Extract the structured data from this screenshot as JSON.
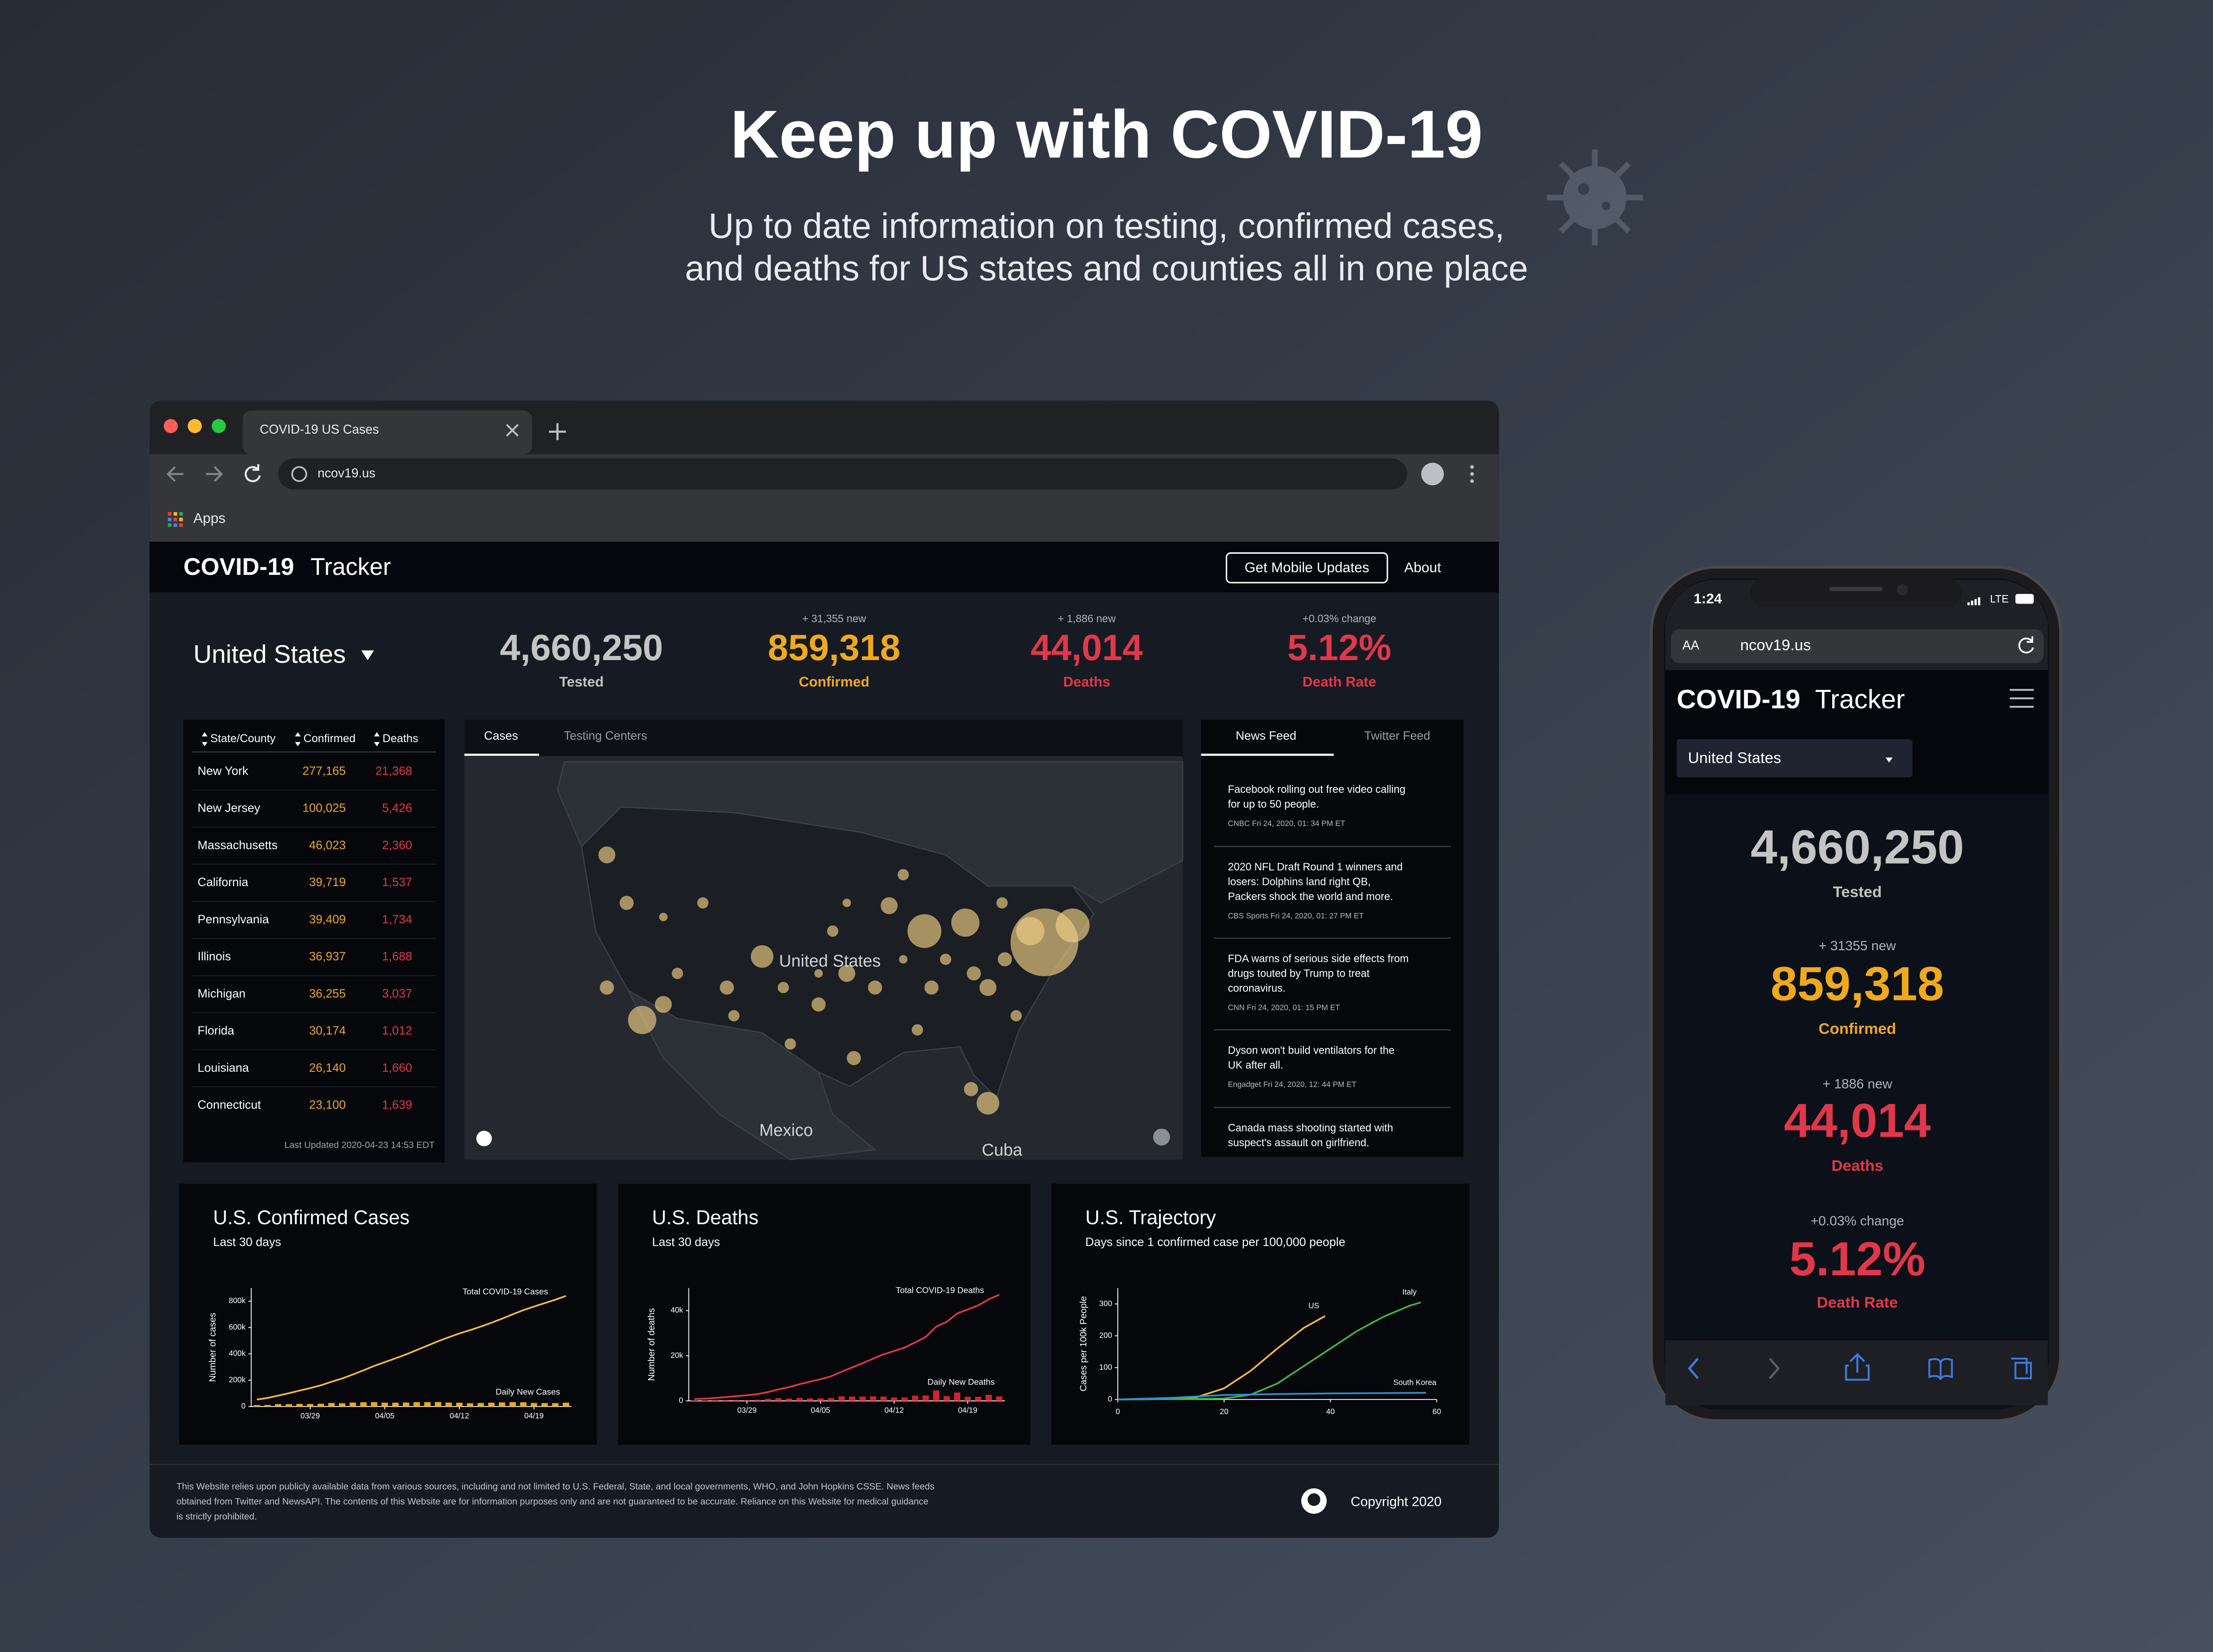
{
  "hero": {
    "title": "Keep up with COVID-19",
    "subtitle_lines": [
      "Up to date information on testing, confirmed cases,",
      "and deaths for US states and counties all in one place"
    ]
  },
  "browser": {
    "tab_title": "COVID-19 US Cases",
    "url": "ncov19.us",
    "bookmark": "Apps"
  },
  "site": {
    "brand_bold": "COVID-19",
    "brand_rest": "Tracker",
    "buttons": [
      "Get Mobile Updates",
      "About"
    ]
  },
  "summary": {
    "location": "United States",
    "stats": [
      {
        "value": "4,660,250",
        "label": "Tested"
      },
      {
        "change": "+ 31,355 new",
        "value": "859,318",
        "label": "Confirmed"
      },
      {
        "change": "+ 1,886 new",
        "value": "44,014",
        "label": "Deaths"
      },
      {
        "change": "+0.03% change",
        "value": "5.12%",
        "label": "Death Rate"
      }
    ]
  },
  "table": {
    "headers": [
      "State/County",
      "Confirmed",
      "Deaths"
    ],
    "rows": [
      [
        "New York",
        "277,165",
        "21,368"
      ],
      [
        "New Jersey",
        "100,025",
        "5,426"
      ],
      [
        "Massachusetts",
        "46,023",
        "2,360"
      ],
      [
        "California",
        "39,719",
        "1,537"
      ],
      [
        "Pennsylvania",
        "39,409",
        "1,734"
      ],
      [
        "Illinois",
        "36,937",
        "1,688"
      ],
      [
        "Michigan",
        "36,255",
        "3,037"
      ],
      [
        "Florida",
        "30,174",
        "1,012"
      ],
      [
        "Louisiana",
        "26,140",
        "1,660"
      ],
      [
        "Connecticut",
        "23,100",
        "1,639"
      ]
    ],
    "footer": "Last Updated 2020-04-23 14:53 EDT"
  },
  "map": {
    "tabs": [
      "Cases",
      "Testing Centers"
    ],
    "labels": [
      "United States",
      "Mexico",
      "Cuba"
    ]
  },
  "news": {
    "tabs": [
      "News Feed",
      "Twitter Feed"
    ],
    "items": [
      {
        "headline": [
          "Facebook rolling out free video calling",
          "for up to 50 people."
        ],
        "meta": "CNBC Fri 24, 2020, 01: 34 PM ET"
      },
      {
        "headline": [
          "2020 NFL Draft Round 1 winners and",
          "losers: Dolphins land right QB,",
          "Packers shock the world and more."
        ],
        "meta": "CBS Sports Fri 24, 2020, 01: 27 PM ET"
      },
      {
        "headline": [
          "FDA warns of serious side effects from",
          "drugs touted by Trump to treat",
          "coronavirus."
        ],
        "meta": "CNN Fri 24, 2020, 01: 15 PM ET"
      },
      {
        "headline": [
          "Dyson won't build ventilators for the",
          "UK after all."
        ],
        "meta": "Engadget Fri 24, 2020, 12: 44 PM ET"
      },
      {
        "headline": [
          "Canada mass shooting started with",
          "suspect's assault on girlfriend."
        ]
      }
    ]
  },
  "charts": [
    {
      "type": "line",
      "title": "U.S. Confirmed Cases",
      "subtitle": "Last 30 days",
      "y_label": "Number of cases",
      "annotations": [
        "Total COVID-19 Cases",
        "Daily New Cases"
      ],
      "categories": [
        null,
        null,
        null,
        null,
        null,
        "03/29",
        null,
        null,
        null,
        null,
        null,
        null,
        "04/05",
        null,
        null,
        null,
        null,
        null,
        null,
        "04/12",
        null,
        null,
        null,
        null,
        null,
        null,
        "04/19",
        null,
        null,
        null
      ],
      "ylim": [
        0,
        900000
      ],
      "yticks": [
        0,
        {
          "value": 200000,
          "label": "200k"
        },
        {
          "value": 400000,
          "label": "400k"
        },
        {
          "value": 600000,
          "label": "600k"
        },
        {
          "value": 800000,
          "label": "800k"
        }
      ],
      "series": [
        {
          "name": "Total COVID-19 Cases",
          "kind": "line",
          "color": "#f5b942",
          "values": [
            53000,
            65000,
            83000,
            101000,
            121000,
            140000,
            161000,
            188000,
            213000,
            243000,
            275000,
            308000,
            337000,
            366000,
            396000,
            429000,
            462000,
            496000,
            526000,
            555000,
            580000,
            607000,
            636000,
            667000,
            700000,
            732000,
            759000,
            785000,
            811000,
            840000
          ]
        },
        {
          "name": "Daily New Cases",
          "kind": "bar",
          "color": "#f0a81c",
          "values": [
            11000,
            12000,
            18000,
            18000,
            20000,
            19000,
            21000,
            27000,
            25000,
            30000,
            32000,
            33000,
            29000,
            29000,
            30000,
            33000,
            33000,
            34000,
            30000,
            29000,
            25000,
            27000,
            29000,
            31000,
            33000,
            32000,
            27000,
            26000,
            26000,
            29000
          ]
        }
      ]
    },
    {
      "type": "line",
      "title": "U.S. Deaths",
      "subtitle": "Last 30 days",
      "y_label": "Number of deaths",
      "annotations": [
        "Total COVID-19 Deaths",
        "Daily New Deaths"
      ],
      "categories": [
        null,
        null,
        null,
        null,
        null,
        "03/29",
        null,
        null,
        null,
        null,
        null,
        null,
        "04/05",
        null,
        null,
        null,
        null,
        null,
        null,
        "04/12",
        null,
        null,
        null,
        null,
        null,
        null,
        "04/19",
        null,
        null,
        null
      ],
      "ylim": [
        0,
        50000
      ],
      "yticks": [
        0,
        {
          "value": 20000,
          "label": "20k"
        },
        {
          "value": 40000,
          "label": "40k"
        }
      ],
      "series": [
        {
          "name": "Total COVID-19 Deaths",
          "kind": "line",
          "color": "#e0384a",
          "values": [
            800,
            1000,
            1300,
            1700,
            2100,
            2500,
            3000,
            3900,
            5100,
            6100,
            7400,
            8500,
            9600,
            10900,
            12900,
            14800,
            16700,
            18700,
            20600,
            22100,
            23600,
            25900,
            28300,
            32900,
            35000,
            38700,
            40500,
            42300,
            45000,
            47000
          ]
        },
        {
          "name": "Daily New Deaths",
          "kind": "bar",
          "color": "#d1242f",
          "values": [
            200,
            200,
            300,
            400,
            400,
            400,
            500,
            900,
            1200,
            1000,
            1300,
            1100,
            1100,
            1300,
            2000,
            1900,
            1900,
            2000,
            1900,
            1500,
            1500,
            2300,
            2400,
            4600,
            2100,
            3700,
            1800,
            1800,
            2700,
            2000
          ]
        }
      ]
    },
    {
      "type": "scatter-line",
      "title": "U.S. Trajectory",
      "subtitle": "Days since 1 confirmed case per 100,000 people",
      "y_label": "Cases per 100k People",
      "xlim": [
        0,
        60
      ],
      "xticks": [
        0,
        20,
        40,
        60
      ],
      "ylim": [
        0,
        350
      ],
      "yticks": [
        0,
        100,
        200,
        300
      ],
      "series": [
        {
          "name": "US",
          "color": "#f5b942",
          "x": [
            0,
            5,
            10,
            15,
            20,
            25,
            30,
            35,
            39
          ],
          "values": [
            0,
            0.5,
            2,
            8,
            35,
            90,
            160,
            225,
            262
          ]
        },
        {
          "name": "Italy",
          "color": "#3db83d",
          "x": [
            0,
            10,
            20,
            25,
            30,
            35,
            40,
            45,
            50,
            55,
            57
          ],
          "values": [
            0,
            1,
            3,
            15,
            50,
            105,
            160,
            215,
            260,
            295,
            305
          ]
        },
        {
          "name": "South Korea",
          "color": "#2f8fd8",
          "x": [
            0,
            10,
            20,
            30,
            40,
            50,
            58
          ],
          "values": [
            0,
            5,
            14,
            17,
            19,
            20,
            21
          ]
        }
      ]
    }
  ],
  "footer": {
    "disclaimer_lines": [
      "This Website relies upon publicly available data from various sources, including and not limited to U.S. Federal, State, and local governments, WHO, and John Hopkins CSSE. News feeds",
      "obtained from Twitter and NewsAPI. The contents of this Website are for information purposes only and are not guaranteed to be accurate. Reliance on this Website for medical guidance",
      "is strictly prohibited."
    ],
    "copyright": "Copyright 2020"
  },
  "phone": {
    "time": "1:24",
    "network": "LTE",
    "text_size": "AA",
    "url": "ncov19.us",
    "brand_bold": "COVID-19",
    "brand_rest": "Tracker",
    "location": "United States",
    "stats": [
      {
        "value": "4,660,250",
        "label": "Tested"
      },
      {
        "change": "+ 31355 new",
        "value": "859,318",
        "label": "Confirmed"
      },
      {
        "change": "+ 1886 new",
        "value": "44,014",
        "label": "Deaths"
      },
      {
        "change": "+0.03% change",
        "value": "5.12%",
        "label": "Death Rate"
      }
    ]
  }
}
